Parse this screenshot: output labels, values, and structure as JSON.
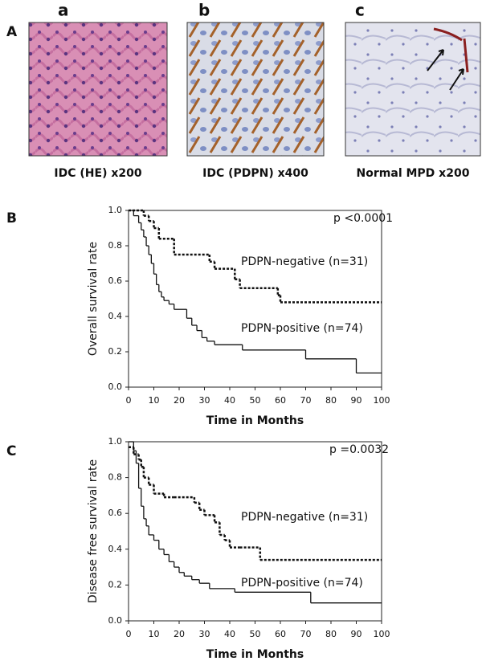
{
  "figure": {
    "panel_labels": [
      "A",
      "B",
      "C"
    ],
    "images": [
      {
        "letter": "a",
        "caption": "IDC (HE) x200"
      },
      {
        "letter": "b",
        "caption": "IDC (PDPN) x400"
      },
      {
        "letter": "c",
        "caption": "Normal MPD x200"
      }
    ]
  },
  "chart_data": [
    {
      "type": "step",
      "ylabel": "Overall survival rate",
      "xlabel": "Time in Months",
      "annotation": "p <0.0001",
      "xlim": [
        0,
        100
      ],
      "ylim": [
        0,
        1
      ],
      "xticks": [
        0,
        10,
        20,
        30,
        40,
        50,
        60,
        70,
        80,
        90,
        100
      ],
      "yticks": [
        {
          "value": 0,
          "label": "0.0"
        },
        {
          "value": 0.2,
          "label": "0.2"
        },
        {
          "value": 0.4,
          "label": "0.4"
        },
        {
          "value": 0.6,
          "label": "0.6"
        },
        {
          "value": 0.8,
          "label": "0.8"
        },
        {
          "value": 1,
          "label": "1.0"
        }
      ],
      "series": [
        {
          "name": "PDPN-negative (n=31)",
          "color": "#111111",
          "dashed": true,
          "x": [
            0,
            6,
            8,
            10,
            12,
            18,
            32,
            34,
            42,
            44,
            59,
            60,
            100
          ],
          "values": [
            1.0,
            0.97,
            0.94,
            0.9,
            0.84,
            0.75,
            0.71,
            0.67,
            0.61,
            0.56,
            0.52,
            0.48,
            0.48
          ]
        },
        {
          "name": "PDPN-positive (n=74)",
          "color": "#111111",
          "dashed": false,
          "x": [
            0,
            2,
            4,
            5,
            6,
            7,
            8,
            9,
            10,
            11,
            12,
            13,
            14,
            16,
            18,
            20,
            23,
            25,
            27,
            29,
            31,
            34,
            45,
            70,
            90,
            100
          ],
          "values": [
            1.0,
            0.97,
            0.93,
            0.89,
            0.85,
            0.8,
            0.75,
            0.7,
            0.64,
            0.58,
            0.54,
            0.51,
            0.49,
            0.47,
            0.44,
            0.44,
            0.39,
            0.35,
            0.32,
            0.28,
            0.26,
            0.24,
            0.21,
            0.16,
            0.08,
            0.08
          ]
        }
      ]
    },
    {
      "type": "step",
      "ylabel": "Disease free survival rate",
      "xlabel": "Time in Months",
      "annotation": "p =0.0032",
      "xlim": [
        0,
        100
      ],
      "ylim": [
        0,
        1
      ],
      "xticks": [
        0,
        10,
        20,
        30,
        40,
        50,
        60,
        70,
        80,
        90,
        100
      ],
      "yticks": [
        {
          "value": 0,
          "label": "0.0"
        },
        {
          "value": 0.2,
          "label": "0.2"
        },
        {
          "value": 0.4,
          "label": "0.4"
        },
        {
          "value": 0.6,
          "label": "0.6"
        },
        {
          "value": 0.8,
          "label": "0.8"
        },
        {
          "value": 1,
          "label": "1.0"
        }
      ],
      "series": [
        {
          "name": "PDPN-negative (n=31)",
          "color": "#111111",
          "dashed": true,
          "x": [
            0,
            2,
            4,
            5,
            6,
            8,
            10,
            14,
            18,
            26,
            28,
            30,
            34,
            36,
            38,
            40,
            44,
            52,
            100
          ],
          "values": [
            0.97,
            0.93,
            0.9,
            0.86,
            0.8,
            0.76,
            0.71,
            0.69,
            0.69,
            0.66,
            0.62,
            0.59,
            0.55,
            0.48,
            0.45,
            0.41,
            0.41,
            0.34,
            0.34
          ]
        },
        {
          "name": "PDPN-positive (n=74)",
          "color": "#111111",
          "dashed": false,
          "x": [
            0,
            2,
            3,
            4,
            5,
            6,
            7,
            8,
            10,
            12,
            14,
            16,
            18,
            20,
            22,
            25,
            28,
            32,
            42,
            72,
            100
          ],
          "values": [
            1.0,
            0.95,
            0.88,
            0.74,
            0.64,
            0.57,
            0.53,
            0.48,
            0.45,
            0.4,
            0.37,
            0.33,
            0.3,
            0.27,
            0.25,
            0.23,
            0.21,
            0.18,
            0.16,
            0.1,
            0.1
          ]
        }
      ]
    }
  ]
}
